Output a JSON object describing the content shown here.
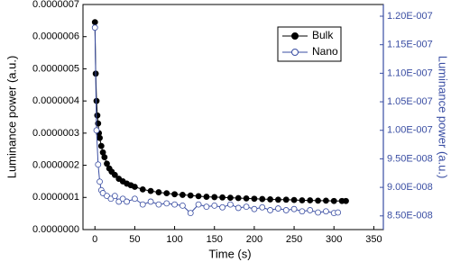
{
  "chart_data": {
    "type": "scatter-line",
    "xlabel": "Time (s)",
    "ylabel": "Luminance power (a.u.)",
    "y2label": "Luminance power (a.u.)",
    "xlim": [
      -15,
      362
    ],
    "xticks": [
      0,
      50,
      100,
      150,
      200,
      250,
      300,
      350
    ],
    "ylim": [
      0,
      7e-07
    ],
    "yticks": [
      {
        "value": 0,
        "label": "0.0000000"
      },
      {
        "value": 1e-07,
        "label": "0.0000001"
      },
      {
        "value": 2e-07,
        "label": "0.0000002"
      },
      {
        "value": 3e-07,
        "label": "0.0000003"
      },
      {
        "value": 4e-07,
        "label": "0.0000004"
      },
      {
        "value": 5e-07,
        "label": "0.0000005"
      },
      {
        "value": 6e-07,
        "label": "0.0000006"
      },
      {
        "value": 7e-07,
        "label": "0.0000007"
      }
    ],
    "y2lim": [
      8.26e-08,
      1.2205e-07
    ],
    "y2ticks": [
      {
        "value": 8.5e-08,
        "label": "8.50E-008"
      },
      {
        "value": 9e-08,
        "label": "9.00E-008"
      },
      {
        "value": 9.5e-08,
        "label": "9.50E-008"
      },
      {
        "value": 1e-07,
        "label": "1.00E-007"
      },
      {
        "value": 1.05e-07,
        "label": "1.05E-007"
      },
      {
        "value": 1.1e-07,
        "label": "1.10E-007"
      },
      {
        "value": 1.15e-07,
        "label": "1.15E-007"
      },
      {
        "value": 1.2e-07,
        "label": "1.20E-007"
      }
    ],
    "y2color": "#3a4ea3",
    "legend": "upper right",
    "series": [
      {
        "name": "Bulk",
        "color": "#000000",
        "marker": "filled",
        "axis": "y",
        "x": [
          0,
          1,
          2,
          3,
          4,
          5,
          6,
          8,
          10,
          12,
          15,
          18,
          21,
          25,
          30,
          35,
          40,
          45,
          50,
          60,
          70,
          80,
          90,
          100,
          110,
          120,
          130,
          140,
          150,
          160,
          170,
          180,
          190,
          200,
          210,
          220,
          230,
          240,
          250,
          260,
          270,
          280,
          290,
          300,
          310,
          315
        ],
        "values": [
          6.45e-07,
          4.85e-07,
          4e-07,
          3.55e-07,
          3.3e-07,
          3e-07,
          2.85e-07,
          2.6e-07,
          2.4e-07,
          2.25e-07,
          2.05e-07,
          1.9e-07,
          1.8e-07,
          1.7e-07,
          1.58e-07,
          1.5e-07,
          1.43e-07,
          1.38e-07,
          1.33e-07,
          1.25e-07,
          1.2e-07,
          1.16e-07,
          1.13e-07,
          1.1e-07,
          1.08e-07,
          1.06e-07,
          1.04e-07,
          1.02e-07,
          1.01e-07,
          1e-07,
          9.9e-08,
          9.8e-08,
          9.7e-08,
          9.6e-08,
          9.5e-08,
          9.4e-08,
          9.3e-08,
          9.3e-08,
          9.2e-08,
          9.1e-08,
          9.1e-08,
          9e-08,
          9e-08,
          8.9e-08,
          8.9e-08,
          8.9e-08
        ]
      },
      {
        "name": "Nano",
        "color": "#3a4ea3",
        "marker": "open",
        "axis": "y2",
        "x": [
          0,
          2,
          4,
          6,
          8,
          10,
          15,
          20,
          25,
          30,
          35,
          40,
          50,
          60,
          70,
          80,
          90,
          100,
          110,
          120,
          130,
          140,
          150,
          160,
          170,
          180,
          190,
          200,
          210,
          220,
          230,
          240,
          250,
          260,
          270,
          280,
          290,
          300,
          305
        ],
        "values": [
          1.18e-07,
          1e-07,
          9.4e-08,
          9.1e-08,
          8.95e-08,
          8.9e-08,
          8.85e-08,
          8.8e-08,
          8.85e-08,
          8.75e-08,
          8.8e-08,
          8.75e-08,
          8.8e-08,
          8.7e-08,
          8.75e-08,
          8.7e-08,
          8.72e-08,
          8.7e-08,
          8.68e-08,
          8.55e-08,
          8.7e-08,
          8.66e-08,
          8.68e-08,
          8.65e-08,
          8.7e-08,
          8.64e-08,
          8.66e-08,
          8.62e-08,
          8.65e-08,
          8.6e-08,
          8.63e-08,
          8.6e-08,
          8.62e-08,
          8.58e-08,
          8.6e-08,
          8.56e-08,
          8.58e-08,
          8.55e-08,
          8.56e-08
        ]
      }
    ]
  }
}
